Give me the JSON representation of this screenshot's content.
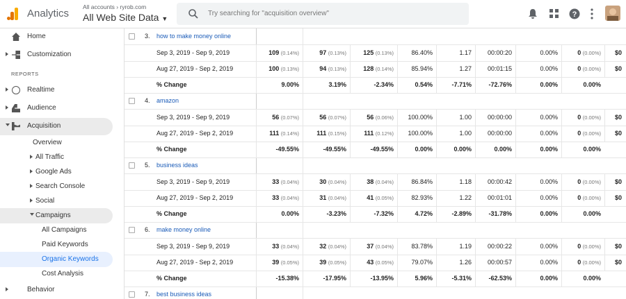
{
  "header": {
    "product": "Analytics",
    "breadcrumb": "All accounts › ryrob.com",
    "property": "All Web Site Data",
    "search_placeholder": "Try searching for \"acquisition overview\""
  },
  "sidebar": {
    "items": [
      "Home",
      "Customization"
    ],
    "section": "REPORTS",
    "reports": [
      "Realtime",
      "Audience",
      "Acquisition"
    ],
    "acquisition": [
      "Overview",
      "All Traffic",
      "Google Ads",
      "Search Console",
      "Social",
      "Campaigns"
    ],
    "campaigns": [
      "All Campaigns",
      "Paid Keywords",
      "Organic Keywords",
      "Cost Analysis"
    ],
    "next": "Behavior"
  },
  "table": {
    "groups": [
      {
        "index": "3.",
        "keyword": "how to make money online",
        "rows": [
          {
            "label": "Sep 3, 2019 - Sep 9, 2019",
            "cells": [
              [
                "109",
                "(0.14%)"
              ],
              [
                "97",
                "(0.13%)"
              ],
              [
                "125",
                "(0.13%)"
              ],
              "86.40%",
              "1.17",
              "00:00:20",
              "0.00%",
              [
                "0",
                "(0.00%)"
              ],
              "$0"
            ]
          },
          {
            "label": "Aug 27, 2019 - Sep 2, 2019",
            "cells": [
              [
                "100",
                "(0.13%)"
              ],
              [
                "94",
                "(0.13%)"
              ],
              [
                "128",
                "(0.14%)"
              ],
              "85.94%",
              "1.27",
              "00:01:15",
              "0.00%",
              [
                "0",
                "(0.00%)"
              ],
              "$0"
            ]
          },
          {
            "label": "% Change",
            "cells": [
              "9.00%",
              "3.19%",
              "-2.34%",
              "0.54%",
              "-7.71%",
              "-72.76%",
              "0.00%",
              "0.00%"
            ]
          }
        ]
      },
      {
        "index": "4.",
        "keyword": "amazon",
        "rows": [
          {
            "label": "Sep 3, 2019 - Sep 9, 2019",
            "cells": [
              [
                "56",
                "(0.07%)"
              ],
              [
                "56",
                "(0.07%)"
              ],
              [
                "56",
                "(0.06%)"
              ],
              "100.00%",
              "1.00",
              "00:00:00",
              "0.00%",
              [
                "0",
                "(0.00%)"
              ],
              "$0"
            ]
          },
          {
            "label": "Aug 27, 2019 - Sep 2, 2019",
            "cells": [
              [
                "111",
                "(0.14%)"
              ],
              [
                "111",
                "(0.15%)"
              ],
              [
                "111",
                "(0.12%)"
              ],
              "100.00%",
              "1.00",
              "00:00:00",
              "0.00%",
              [
                "0",
                "(0.00%)"
              ],
              "$0"
            ]
          },
          {
            "label": "% Change",
            "cells": [
              "-49.55%",
              "-49.55%",
              "-49.55%",
              "0.00%",
              "0.00%",
              "0.00%",
              "0.00%",
              "0.00%"
            ]
          }
        ]
      },
      {
        "index": "5.",
        "keyword": "business ideas",
        "rows": [
          {
            "label": "Sep 3, 2019 - Sep 9, 2019",
            "cells": [
              [
                "33",
                "(0.04%)"
              ],
              [
                "30",
                "(0.04%)"
              ],
              [
                "38",
                "(0.04%)"
              ],
              "86.84%",
              "1.18",
              "00:00:42",
              "0.00%",
              [
                "0",
                "(0.00%)"
              ],
              "$0"
            ]
          },
          {
            "label": "Aug 27, 2019 - Sep 2, 2019",
            "cells": [
              [
                "33",
                "(0.04%)"
              ],
              [
                "31",
                "(0.04%)"
              ],
              [
                "41",
                "(0.05%)"
              ],
              "82.93%",
              "1.22",
              "00:01:01",
              "0.00%",
              [
                "0",
                "(0.00%)"
              ],
              "$0"
            ]
          },
          {
            "label": "% Change",
            "cells": [
              "0.00%",
              "-3.23%",
              "-7.32%",
              "4.72%",
              "-2.89%",
              "-31.78%",
              "0.00%",
              "0.00%"
            ]
          }
        ]
      },
      {
        "index": "6.",
        "keyword": "make money online",
        "rows": [
          {
            "label": "Sep 3, 2019 - Sep 9, 2019",
            "cells": [
              [
                "33",
                "(0.04%)"
              ],
              [
                "32",
                "(0.04%)"
              ],
              [
                "37",
                "(0.04%)"
              ],
              "83.78%",
              "1.19",
              "00:00:22",
              "0.00%",
              [
                "0",
                "(0.00%)"
              ],
              "$0"
            ]
          },
          {
            "label": "Aug 27, 2019 - Sep 2, 2019",
            "cells": [
              [
                "39",
                "(0.05%)"
              ],
              [
                "39",
                "(0.05%)"
              ],
              [
                "43",
                "(0.05%)"
              ],
              "79.07%",
              "1.26",
              "00:00:57",
              "0.00%",
              [
                "0",
                "(0.00%)"
              ],
              "$0"
            ]
          },
          {
            "label": "% Change",
            "cells": [
              "-15.38%",
              "-17.95%",
              "-13.95%",
              "5.96%",
              "-5.31%",
              "-62.53%",
              "0.00%",
              "0.00%"
            ]
          }
        ]
      },
      {
        "index": "7.",
        "keyword": "best business ideas",
        "rows": []
      }
    ]
  }
}
